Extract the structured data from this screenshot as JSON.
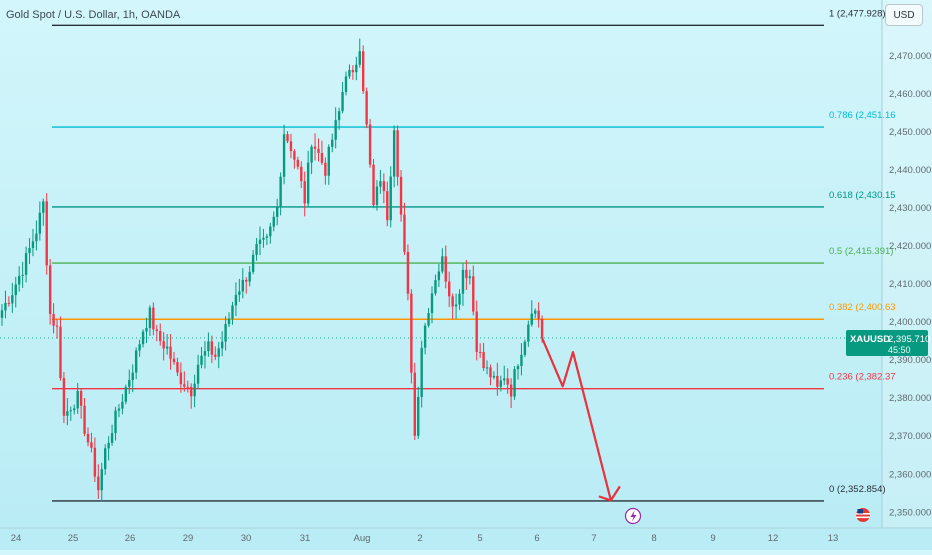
{
  "header": {
    "title": "Gold Spot / U.S. Dollar, 1h, OANDA",
    "currency": "USD"
  },
  "colors": {
    "up": "#089981",
    "down": "#f23645",
    "fib_top": "#2a2e39",
    "fib_786": "#00bcd4",
    "fib_618": "#009688",
    "fib_05": "#4caf50",
    "fib_382": "#ff9800",
    "fib_236": "#f23645",
    "fib_0": "#2a2e39",
    "projection": "#e8323c",
    "price_tag": "#089981"
  },
  "chart_data": {
    "type": "candlestick",
    "symbol": "XAUUSD",
    "current_price": "2,395.710",
    "countdown": "45:50",
    "ylim": [
      2346,
      2483
    ],
    "y_ticks": [
      "2,470.000",
      "2,460.000",
      "2,450.000",
      "2,440.000",
      "2,430.000",
      "2,420.000",
      "2,410.000",
      "2,400.000",
      "2,390.000",
      "2,380.000",
      "2,370.000",
      "2,360.000",
      "2,350.000"
    ],
    "y_tick_values": [
      2470,
      2460,
      2450,
      2440,
      2430,
      2420,
      2410,
      2400,
      2390,
      2380,
      2370,
      2360,
      2350
    ],
    "x_ticks": [
      "24",
      "25",
      "26",
      "29",
      "30",
      "31",
      "Aug",
      "2",
      "5",
      "6",
      "7",
      "8",
      "9",
      "12",
      "13"
    ],
    "fib_levels": [
      {
        "label": "1 (2,477.928)",
        "value": 2477.928,
        "color_key": "fib_top"
      },
      {
        "label": "0.786 (2,451.16",
        "value": 2451.16,
        "color_key": "fib_786"
      },
      {
        "label": "0.618 (2,430.15",
        "value": 2430.15,
        "color_key": "fib_618"
      },
      {
        "label": "0.5 (2,415.391)",
        "value": 2415.391,
        "color_key": "fib_05"
      },
      {
        "label": "0.382 (2,400.63",
        "value": 2400.63,
        "color_key": "fib_382"
      },
      {
        "label": "0.236 (2,382.37",
        "value": 2382.37,
        "color_key": "fib_236"
      },
      {
        "label": "0 (2,352.854)",
        "value": 2352.854,
        "color_key": "fib_0"
      }
    ],
    "anchors": [
      [
        0,
        2403
      ],
      [
        3,
        2408
      ],
      [
        6,
        2414
      ],
      [
        8,
        2419
      ],
      [
        10,
        2424
      ],
      [
        12,
        2431
      ],
      [
        14,
        2402
      ],
      [
        16,
        2398
      ],
      [
        18,
        2375
      ],
      [
        20,
        2378
      ],
      [
        22,
        2380
      ],
      [
        24,
        2372
      ],
      [
        26,
        2365
      ],
      [
        28,
        2356
      ],
      [
        30,
        2366
      ],
      [
        32,
        2372
      ],
      [
        35,
        2380
      ],
      [
        38,
        2388
      ],
      [
        41,
        2398
      ],
      [
        43,
        2402
      ],
      [
        45,
        2396
      ],
      [
        48,
        2393
      ],
      [
        51,
        2386
      ],
      [
        53,
        2384
      ],
      [
        55,
        2382
      ],
      [
        57,
        2389
      ],
      [
        60,
        2393
      ],
      [
        62,
        2391
      ],
      [
        64,
        2395
      ],
      [
        66,
        2401
      ],
      [
        68,
        2408
      ],
      [
        70,
        2410
      ],
      [
        72,
        2414
      ],
      [
        74,
        2419
      ],
      [
        77,
        2421
      ],
      [
        80,
        2430
      ],
      [
        82,
        2450
      ],
      [
        84,
        2446
      ],
      [
        86,
        2440
      ],
      [
        88,
        2432
      ],
      [
        90,
        2448
      ],
      [
        92,
        2444
      ],
      [
        94,
        2440
      ],
      [
        96,
        2448
      ],
      [
        98,
        2455
      ],
      [
        100,
        2466
      ],
      [
        102,
        2464
      ],
      [
        104,
        2473
      ],
      [
        106,
        2451
      ],
      [
        108,
        2430
      ],
      [
        110,
        2438
      ],
      [
        112,
        2428
      ],
      [
        114,
        2452
      ],
      [
        116,
        2428
      ],
      [
        118,
        2406
      ],
      [
        120,
        2370
      ],
      [
        122,
        2394
      ],
      [
        124,
        2404
      ],
      [
        126,
        2412
      ],
      [
        128,
        2416
      ],
      [
        130,
        2408
      ],
      [
        132,
        2404
      ],
      [
        134,
        2414
      ],
      [
        136,
        2412
      ],
      [
        138,
        2394
      ],
      [
        140,
        2388
      ],
      [
        142,
        2386
      ],
      [
        144,
        2382
      ],
      [
        146,
        2386
      ],
      [
        148,
        2382
      ],
      [
        150,
        2390
      ],
      [
        152,
        2396
      ],
      [
        154,
        2404
      ],
      [
        156,
        2401
      ],
      [
        157,
        2395.71
      ]
    ],
    "projection": [
      {
        "bar": 157,
        "value": 2395.71
      },
      {
        "bar": 163,
        "value": 2383
      },
      {
        "bar": 166,
        "value": 2392
      },
      {
        "bar": 177,
        "value": 2353
      }
    ]
  }
}
